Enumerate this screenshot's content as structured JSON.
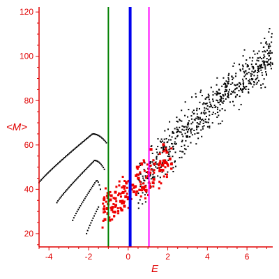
{
  "chart_data": {
    "type": "scatter",
    "title": "",
    "xlabel": "E",
    "ylabel": "<M>",
    "xlim": [
      -4.5,
      7.3
    ],
    "ylim": [
      14,
      121
    ],
    "x_ticks": [
      -4,
      -2,
      0,
      2,
      4,
      6
    ],
    "y_ticks": [
      20,
      40,
      60,
      80,
      100,
      120
    ],
    "grid": false,
    "legend": "none",
    "colors": {
      "axis": "#e00000",
      "red_points": "#ee0000",
      "black_points": "#000000",
      "line_green": "#008000",
      "line_blue": "#0000ee",
      "line_magenta": "#ff00ff"
    },
    "vertical_lines": [
      {
        "x": -1.0,
        "color": "#008000",
        "width": "thin"
      },
      {
        "x": 0.1,
        "color": "#0000ee",
        "width": "thick"
      },
      {
        "x": 1.05,
        "color": "#ff00ff",
        "width": "thin"
      }
    ],
    "curves": [
      {
        "x_start": -4.5,
        "x_end": -1.1,
        "y_start": 43,
        "y_peak": 65,
        "x_peak": -1.8
      },
      {
        "x_start": -3.6,
        "x_end": -1.2,
        "y_start": 34,
        "y_peak": 53,
        "x_peak": -1.7
      },
      {
        "x_start": -2.8,
        "x_end": -1.4,
        "y_start": 26,
        "y_peak": 44,
        "x_peak": -1.6
      },
      {
        "x_start": -2.1,
        "x_end": -1.5,
        "y_start": 20,
        "y_peak": 32,
        "x_peak": -1.5
      }
    ],
    "clouds": [
      {
        "color": "#ee0000",
        "size": "large",
        "count": 200,
        "x_range": [
          -1.3,
          2.2
        ],
        "trend": [
          [
            -1.3,
            31
          ],
          [
            1,
            45
          ],
          [
            2.2,
            55
          ]
        ],
        "spread": 9
      },
      {
        "color": "#000000",
        "size": "small",
        "count": 650,
        "x_range": [
          0.5,
          7.3
        ],
        "trend": [
          [
            0.5,
            42
          ],
          [
            3,
            67
          ],
          [
            5.5,
            88
          ],
          [
            7.3,
            102
          ]
        ],
        "spread": 11
      }
    ]
  }
}
